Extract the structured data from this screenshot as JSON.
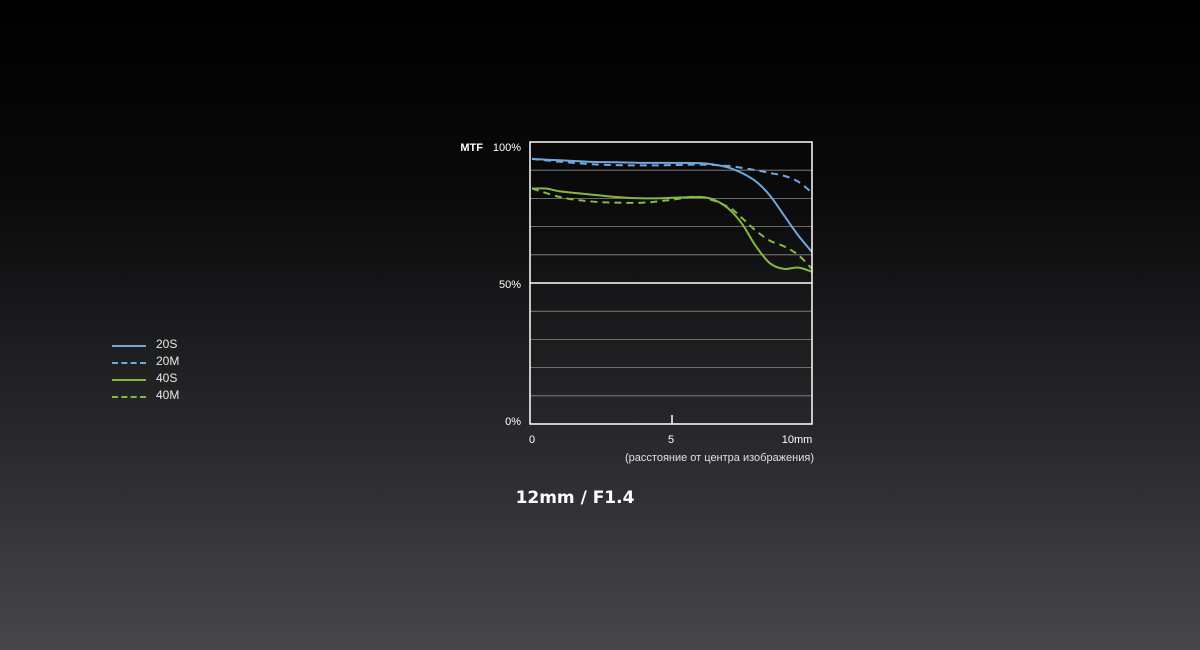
{
  "chart_data": {
    "type": "line",
    "title": "12mm / F1.4",
    "ylabel": "MTF",
    "xlabel": "(расстояние от центра изображения)",
    "xlim": [
      0,
      10
    ],
    "ylim": [
      0,
      100
    ],
    "x_ticks": [
      "0",
      "5",
      "10mm"
    ],
    "y_ticks": [
      "0%",
      "50%",
      "100%"
    ],
    "grid": true,
    "legend": "left",
    "series": [
      {
        "name": "20S",
        "color": "#6fa8dc",
        "dash": "solid",
        "x": [
          0,
          1,
          2,
          3,
          4,
          5,
          6,
          6.5,
          7,
          7.5,
          8,
          8.5,
          9,
          9.5,
          10
        ],
        "y": [
          94,
          93.5,
          93,
          92.8,
          92.6,
          92.6,
          92.5,
          92,
          91,
          89,
          86,
          81,
          74,
          67,
          61
        ]
      },
      {
        "name": "20M",
        "color": "#6fa8dc",
        "dash": "dashed",
        "x": [
          0,
          1,
          2,
          3,
          4,
          5,
          6,
          7,
          8,
          8.5,
          9,
          9.5,
          10
        ],
        "y": [
          94,
          93,
          92.2,
          91.8,
          91.7,
          91.8,
          92,
          91.5,
          90,
          89,
          88,
          86,
          82
        ]
      },
      {
        "name": "40S",
        "color": "#86b840",
        "dash": "solid",
        "x": [
          0,
          0.5,
          1,
          2,
          3,
          4,
          5,
          6,
          6.5,
          7,
          7.5,
          8,
          8.5,
          9,
          9.5,
          10
        ],
        "y": [
          83.5,
          83.5,
          82.5,
          81.5,
          80.5,
          80,
          80.2,
          80.5,
          79.5,
          76.5,
          71,
          63,
          57,
          55,
          55.5,
          54
        ]
      },
      {
        "name": "40M",
        "color": "#86b840",
        "dash": "dashed",
        "x": [
          0,
          1,
          2,
          3,
          4,
          5,
          6,
          7,
          7.5,
          8,
          8.5,
          9,
          9.5,
          10
        ],
        "y": [
          83.5,
          80.5,
          79,
          78.5,
          78.5,
          79.5,
          80.5,
          77,
          73,
          68.5,
          65,
          63,
          60,
          55
        ]
      }
    ]
  }
}
